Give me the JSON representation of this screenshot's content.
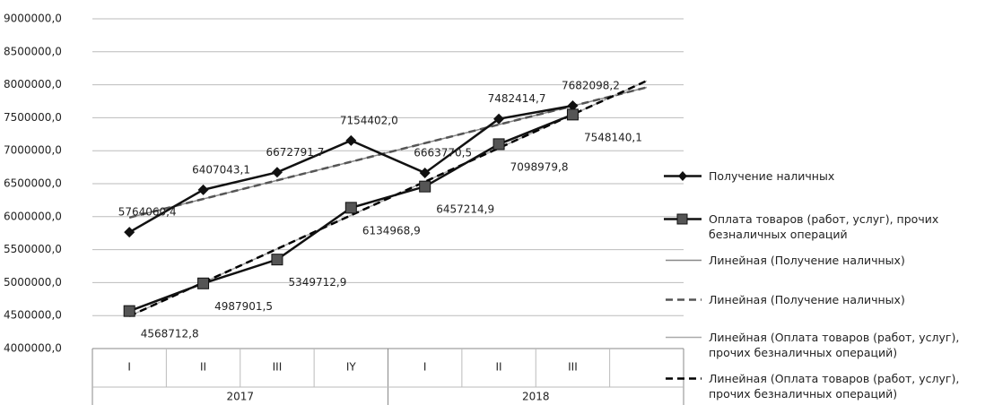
{
  "chart_data": {
    "type": "line",
    "categories": [
      "I",
      "II",
      "III",
      "IY",
      "I",
      "II",
      "III",
      null
    ],
    "groups": [
      {
        "label": "2017",
        "span": 4
      },
      {
        "label": "2018",
        "span": 4
      }
    ],
    "ylim": [
      4000000,
      9000000
    ],
    "yticks": [
      {
        "value": 4000000,
        "label": "4000000,0"
      },
      {
        "value": 4500000,
        "label": "4500000,0"
      },
      {
        "value": 5000000,
        "label": "5000000,0"
      },
      {
        "value": 5500000,
        "label": "5500000,0"
      },
      {
        "value": 6000000,
        "label": "6000000,0"
      },
      {
        "value": 6500000,
        "label": "6500000,0"
      },
      {
        "value": 7000000,
        "label": "7000000,0"
      },
      {
        "value": 7500000,
        "label": "7500000,0"
      },
      {
        "value": 8000000,
        "label": "8000000,0"
      },
      {
        "value": 8500000,
        "label": "8500000,0"
      },
      {
        "value": 9000000,
        "label": "9000000,0"
      }
    ],
    "grid": true,
    "series": [
      {
        "name": "Получение наличных",
        "color": "#111111",
        "marker": "diamond",
        "values": [
          5764060.4,
          6407043.1,
          6672791.7,
          7154402.0,
          6663770.5,
          7482414.7,
          7682098.2,
          null
        ],
        "value_labels": [
          "5764060,4",
          "6407043,1",
          "6672791,7",
          "7154402,0",
          "6663770,5",
          "7482414,7",
          "7682098,2",
          null
        ],
        "trendlines": [
          {
            "name": "Линейная (Получение наличных)",
            "color": "#888888",
            "dash": "solid"
          },
          {
            "name": "Линейная (Получение наличных)",
            "color": "#555555",
            "dash": "dashed"
          }
        ]
      },
      {
        "name": "Оплата товаров (работ, услуг), прочих безналичных операций",
        "color": "#111111",
        "marker": "square",
        "values": [
          4568712.8,
          4987901.5,
          5349712.9,
          6134968.9,
          6457214.9,
          7098979.8,
          7548140.1,
          null
        ],
        "value_labels": [
          "4568712,8",
          "4987901,5",
          "5349712,9",
          "6134968,9",
          "6457214,9",
          "7098979,8",
          "7548140,1",
          null
        ],
        "trendlines": [
          {
            "name": "Линейная (Оплата товаров (работ, услуг), прочих безналичных операций)",
            "color": "#aaaaaa",
            "dash": "solid"
          },
          {
            "name": "Линейная (Оплата товаров (работ, услуг), прочих безналичных операций)",
            "color": "#000000",
            "dash": "dashed"
          }
        ]
      }
    ]
  }
}
